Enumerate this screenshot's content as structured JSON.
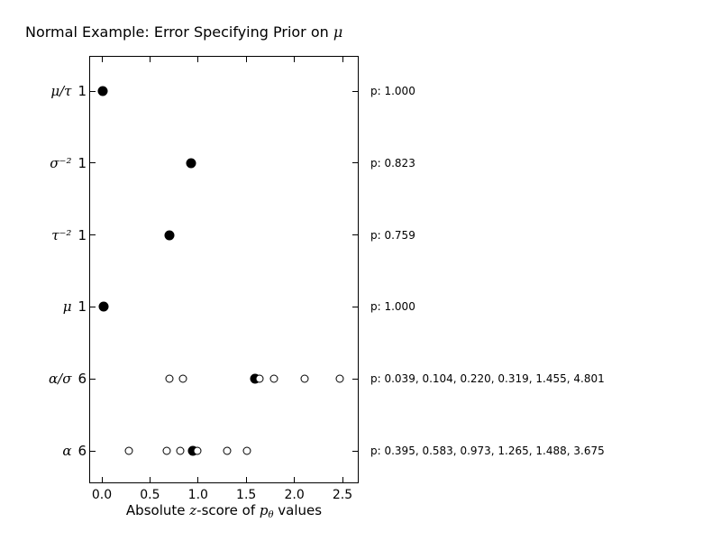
{
  "figure": {
    "background_color": "#ffffff",
    "foreground_color": "#000000"
  },
  "chart_data": {
    "type": "scatter",
    "title": "Normal Example: Error Specifying Prior on μ",
    "title_parts": {
      "text": "Normal Example: Error Specifying Prior on ",
      "symbol": "μ"
    },
    "xlabel": "Absolute z-score of p_θ values",
    "xlabel_parts": {
      "pre": "Absolute ",
      "z": "z",
      "mid": "-score of ",
      "p": "p",
      "sub": "θ",
      "post": " values"
    },
    "xlim": [
      -0.13,
      2.67
    ],
    "x_ticks": [
      "0.0",
      "0.5",
      "1.0",
      "1.5",
      "2.0",
      "2.5"
    ],
    "grid": false,
    "legend": false,
    "marker_styles": {
      "filled": "black filled circle",
      "open": "open circle"
    },
    "rows": [
      {
        "label": "μ/τ",
        "count": "1",
        "z_filled": [
          0.01
        ],
        "z_open": [],
        "p_values": [
          1.0
        ],
        "p_text": "p: 1.000"
      },
      {
        "label": "σ⁻²",
        "count": "1",
        "z_filled": [
          0.93
        ],
        "z_open": [],
        "p_values": [
          0.823
        ],
        "p_text": "p: 0.823"
      },
      {
        "label": "τ⁻²",
        "count": "1",
        "z_filled": [
          0.7
        ],
        "z_open": [],
        "p_values": [
          0.759
        ],
        "p_text": "p: 0.759"
      },
      {
        "label": "μ",
        "count": "1",
        "z_filled": [
          0.02
        ],
        "z_open": [],
        "p_values": [
          1.0
        ],
        "p_text": "p: 1.000"
      },
      {
        "label": "α/σ",
        "count": "6",
        "z_filled": [
          1.59
        ],
        "z_open": [
          0.7,
          0.84,
          1.64,
          1.79,
          2.11,
          2.47
        ],
        "p_values": [
          0.039,
          0.104,
          0.22,
          0.319,
          1.455,
          4.801
        ],
        "p_text": "p: 0.039, 0.104, 0.220, 0.319, 1.455, 4.801"
      },
      {
        "label": "α",
        "count": "6",
        "z_filled": [
          0.95
        ],
        "z_open": [
          0.28,
          0.67,
          0.81,
          0.99,
          1.3,
          1.51
        ],
        "p_values": [
          0.395,
          0.583,
          0.973,
          1.265,
          1.488,
          3.675
        ],
        "p_text": "p: 0.395, 0.583, 0.973, 1.265, 1.488, 3.675"
      }
    ]
  }
}
